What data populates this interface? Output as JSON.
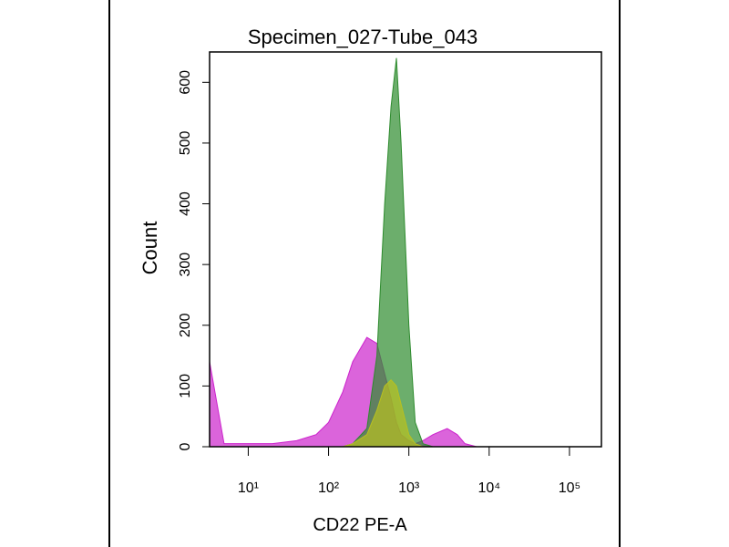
{
  "chart_data": {
    "type": "area",
    "title": "Specimen_027-Tube_043",
    "x_label": "CD22 PE-A",
    "y_label": "Count",
    "xscale": "log",
    "xlim": [
      3.3,
      250000
    ],
    "xticks": [
      {
        "value": 10,
        "label": "10¹"
      },
      {
        "value": 100,
        "label": "10²"
      },
      {
        "value": 1000,
        "label": "10³"
      },
      {
        "value": 10000,
        "label": "10⁴"
      },
      {
        "value": 100000,
        "label": "10⁵"
      }
    ],
    "ylim": [
      0,
      650
    ],
    "yticks": [
      0,
      100,
      200,
      300,
      400,
      500,
      600
    ],
    "x": [
      3.3,
      5,
      10,
      20,
      40,
      70,
      100,
      150,
      200,
      300,
      400,
      500,
      600,
      700,
      800,
      1000,
      1200,
      1500,
      2000,
      3000,
      4000,
      5000,
      7000,
      10000,
      250000
    ],
    "series": [
      {
        "color": "#cc22cc",
        "values": [
          140,
          5,
          5,
          5,
          10,
          20,
          40,
          90,
          140,
          180,
          170,
          120,
          80,
          40,
          20,
          10,
          5,
          10,
          20,
          30,
          20,
          5,
          0,
          0,
          0
        ]
      },
      {
        "color": "#2e8b2e",
        "values": [
          0,
          0,
          0,
          0,
          0,
          0,
          0,
          0,
          5,
          30,
          150,
          400,
          560,
          640,
          500,
          200,
          40,
          5,
          0,
          0,
          0,
          0,
          0,
          0,
          0
        ]
      },
      {
        "color": "#b8c020",
        "values": [
          0,
          0,
          0,
          0,
          0,
          0,
          0,
          0,
          5,
          20,
          60,
          100,
          110,
          100,
          70,
          20,
          5,
          0,
          0,
          0,
          0,
          0,
          0,
          0,
          0
        ]
      }
    ]
  }
}
